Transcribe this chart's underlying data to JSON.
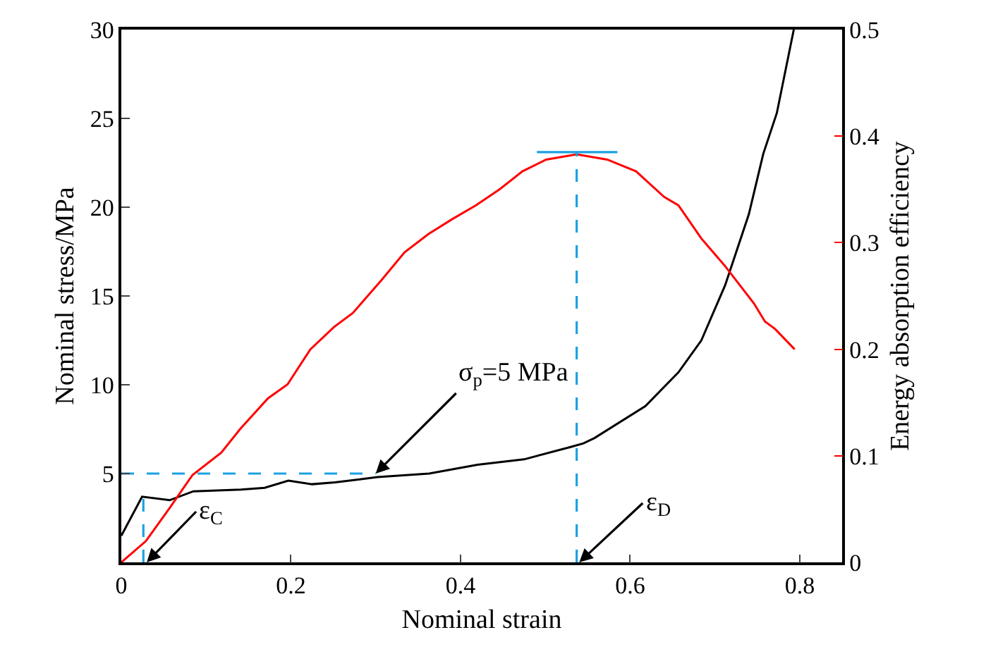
{
  "chart_data": {
    "type": "line",
    "xlabel": "Nominal strain",
    "ylabel": "Nominal stress/MPa",
    "y2label": "Energy absorption efficiency",
    "xlim": [
      0,
      0.85
    ],
    "xticks": [
      0,
      0.2,
      0.4,
      0.6,
      0.8
    ],
    "ylim": [
      0,
      30
    ],
    "yticks": [
      5,
      10,
      15,
      20,
      25,
      30
    ],
    "y2lim": [
      0,
      0.5
    ],
    "y2ticks": [
      0,
      0.1,
      0.2,
      0.3,
      0.4,
      0.5
    ],
    "marker": "none",
    "series": [
      {
        "color": "#000000",
        "x": [
          0,
          0.0245,
          0.057,
          0.085,
          0.141,
          0.169,
          0.197,
          0.225,
          0.252,
          0.302,
          0.363,
          0.42,
          0.475,
          0.53,
          0.545,
          0.558,
          0.618,
          0.657,
          0.684,
          0.712,
          0.74,
          0.757,
          0.773,
          0.793
        ],
        "values": [
          1.5,
          3.7,
          3.5,
          4.0,
          4.1,
          4.2,
          4.6,
          4.4,
          4.5,
          4.8,
          5.0,
          5.5,
          5.8,
          6.5,
          6.7,
          7.0,
          8.8,
          10.7,
          12.5,
          15.6,
          19.6,
          23.0,
          25.3,
          30
        ]
      },
      {
        "color": "#ff0000",
        "axis": "y2",
        "x": [
          0,
          0.029,
          0.057,
          0.084,
          0.118,
          0.14,
          0.173,
          0.196,
          0.223,
          0.251,
          0.273,
          0.307,
          0.334,
          0.362,
          0.39,
          0.418,
          0.446,
          0.473,
          0.501,
          0.537,
          0.573,
          0.607,
          0.64,
          0.657,
          0.684,
          0.712,
          0.746,
          0.759,
          0.771,
          0.794
        ],
        "values": [
          0,
          0.02,
          0.051,
          0.082,
          0.103,
          0.125,
          0.154,
          0.167,
          0.2,
          0.221,
          0.234,
          0.265,
          0.291,
          0.308,
          0.322,
          0.335,
          0.35,
          0.367,
          0.378,
          0.383,
          0.378,
          0.367,
          0.343,
          0.335,
          0.304,
          0.278,
          0.243,
          0.226,
          0.219,
          0.2
        ]
      },
      {
        "color": "#1ba1e2",
        "line_style": "dashed",
        "x": [
          0,
          0.3
        ],
        "values": [
          5,
          5
        ]
      },
      {
        "color": "#1ba1e2",
        "line_style": "dashed",
        "x": [
          0.026,
          0.026
        ],
        "values": [
          0,
          3.7
        ]
      },
      {
        "color": "#1ba1e2",
        "line_style": "dashed",
        "axis": "y2",
        "x": [
          0.537,
          0.537
        ],
        "values": [
          0,
          0.385
        ]
      },
      {
        "color": "#1ba1e2",
        "line_style": "solid",
        "axis": "y2",
        "x": [
          0.49,
          0.585
        ],
        "values": [
          0.385,
          0.385
        ]
      }
    ],
    "annotations": [
      {
        "text": "σ$_{p}$=5 MPa",
        "x": 0.3,
        "y": 5
      },
      {
        "text": "ε$_{C}$",
        "x": 0.03,
        "y": 0
      },
      {
        "text": "ε$_{D}$",
        "x": 0.54,
        "y": 0
      }
    ]
  }
}
